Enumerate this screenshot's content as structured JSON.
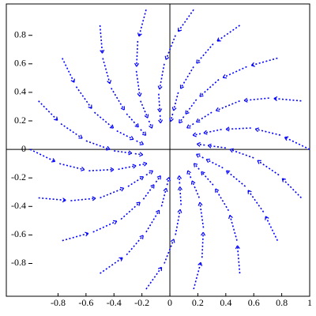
{
  "chart_data": {
    "type": "field",
    "color": "#0000ff",
    "xlim": [
      -1.17,
      1.0
    ],
    "ylim": [
      -1.03,
      1.02
    ],
    "xticks": [
      -0.8,
      -0.6,
      -0.4,
      -0.2,
      0,
      0.2,
      0.4,
      0.6,
      0.8,
      1
    ],
    "yticks": [
      -0.8,
      -0.6,
      -0.4,
      -0.2,
      0,
      0.2,
      0.4,
      0.6,
      0.8
    ],
    "series": [
      {
        "x": [
          1,
          0.79,
          0.58,
          0.37,
          0.22
        ],
        "y": [
          0,
          0.1,
          0.15,
          0.14,
          0.11
        ]
      },
      {
        "x": [
          0.94,
          0.71,
          0.5,
          0.3,
          0.17
        ],
        "y": [
          0.34,
          0.36,
          0.34,
          0.26,
          0.18
        ]
      },
      {
        "x": [
          0.77,
          0.55,
          0.35,
          0.19,
          0.1
        ],
        "y": [
          0.64,
          0.58,
          0.49,
          0.35,
          0.23
        ]
      },
      {
        "x": [
          0.5,
          0.31,
          0.17,
          0.06,
          0.02
        ],
        "y": [
          0.87,
          0.74,
          0.58,
          0.4,
          0.25
        ]
      },
      {
        "x": [
          0.17,
          0.04,
          -0.04,
          -0.08,
          -0.07
        ],
        "y": [
          0.98,
          0.8,
          0.6,
          0.39,
          0.24
        ]
      },
      {
        "x": [
          -0.17,
          -0.23,
          -0.24,
          -0.21,
          -0.15
        ],
        "y": [
          0.98,
          0.76,
          0.55,
          0.34,
          0.2
        ]
      },
      {
        "x": [
          -0.5,
          -0.48,
          -0.42,
          -0.31,
          -0.21
        ],
        "y": [
          0.87,
          0.64,
          0.43,
          0.25,
          0.14
        ]
      },
      {
        "x": [
          -0.77,
          -0.67,
          -0.54,
          -0.38,
          -0.24
        ],
        "y": [
          0.64,
          0.44,
          0.26,
          0.13,
          0.06
        ]
      },
      {
        "x": [
          -0.94,
          -0.78,
          -0.6,
          -0.4,
          -0.25
        ],
        "y": [
          0.34,
          0.18,
          0.06,
          -0.01,
          -0.03
        ]
      },
      {
        "x": [
          -1,
          -0.79,
          -0.58,
          -0.37,
          -0.22
        ],
        "y": [
          0,
          -0.1,
          -0.15,
          -0.14,
          -0.11
        ]
      },
      {
        "x": [
          -0.94,
          -0.71,
          -0.5,
          -0.3,
          -0.17
        ],
        "y": [
          -0.34,
          -0.36,
          -0.34,
          -0.26,
          -0.18
        ]
      },
      {
        "x": [
          -0.77,
          -0.55,
          -0.35,
          -0.19,
          -0.1
        ],
        "y": [
          -0.64,
          -0.58,
          -0.49,
          -0.35,
          -0.23
        ]
      },
      {
        "x": [
          -0.5,
          -0.31,
          -0.17,
          -0.06,
          -0.02
        ],
        "y": [
          -0.87,
          -0.74,
          -0.58,
          -0.4,
          -0.25
        ]
      },
      {
        "x": [
          -0.17,
          -0.04,
          0.04,
          0.08,
          0.07
        ],
        "y": [
          -0.98,
          -0.8,
          -0.6,
          -0.39,
          -0.24
        ]
      },
      {
        "x": [
          0.17,
          0.23,
          0.24,
          0.21,
          0.15
        ],
        "y": [
          -0.98,
          -0.76,
          -0.55,
          -0.34,
          -0.2
        ]
      },
      {
        "x": [
          0.5,
          0.48,
          0.42,
          0.31,
          0.21
        ],
        "y": [
          -0.87,
          -0.64,
          -0.43,
          -0.25,
          -0.14
        ]
      },
      {
        "x": [
          0.77,
          0.67,
          0.54,
          0.38,
          0.24
        ],
        "y": [
          -0.64,
          -0.44,
          -0.26,
          -0.13,
          -0.06
        ]
      },
      {
        "x": [
          0.94,
          0.78,
          0.6,
          0.4,
          0.25
        ],
        "y": [
          -0.34,
          -0.18,
          -0.06,
          0.01,
          0.03
        ]
      }
    ]
  }
}
